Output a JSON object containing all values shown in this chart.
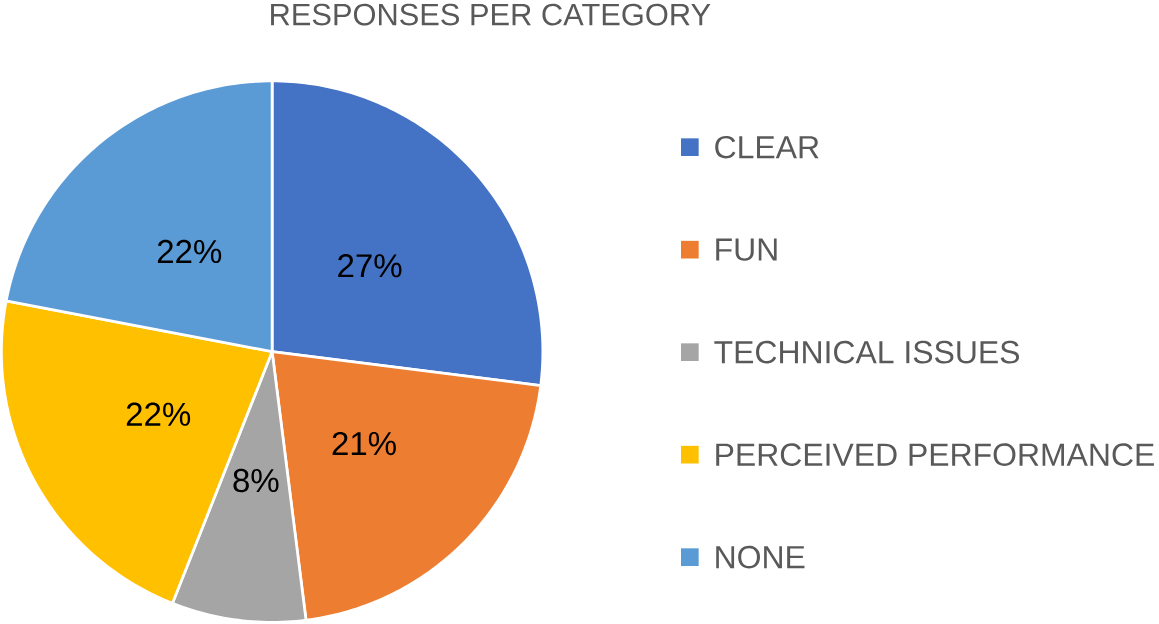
{
  "chart_data": {
    "type": "pie",
    "title": "RESPONSES PER CATEGORY",
    "categories": [
      "CLEAR",
      "FUN",
      "TECHNICAL ISSUES",
      "PERCEIVED PERFORMANCE",
      "NONE"
    ],
    "values": [
      27,
      21,
      8,
      22,
      22
    ],
    "value_labels": [
      "27%",
      "21%",
      "8%",
      "22%",
      "22%"
    ],
    "colors": [
      "#4472c4",
      "#ed7d31",
      "#a5a5a5",
      "#ffc000",
      "#5b9bd5"
    ],
    "legend": "right"
  }
}
